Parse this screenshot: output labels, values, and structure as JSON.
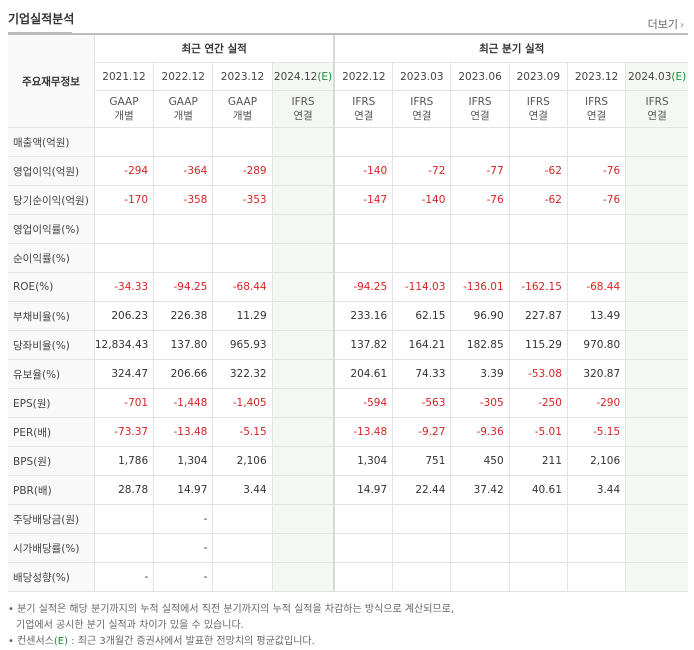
{
  "header": {
    "title": "기업실적분석",
    "more_label": "더보기"
  },
  "table": {
    "row_header": "주요재무정보",
    "annual_group": "최근 연간 실적",
    "quarter_group": "최근 분기 실적",
    "annual_periods": [
      "2021.12",
      "2022.12",
      "2023.12",
      "2024.12"
    ],
    "quarter_periods": [
      "2022.12",
      "2023.03",
      "2023.06",
      "2023.09",
      "2023.12",
      "2024.03"
    ],
    "estimate_mark": "(E)",
    "annual_basis": [
      {
        "std": "GAAP",
        "type": "개별"
      },
      {
        "std": "GAAP",
        "type": "개별"
      },
      {
        "std": "GAAP",
        "type": "개별"
      },
      {
        "std": "IFRS",
        "type": "연결"
      }
    ],
    "quarter_basis": [
      {
        "std": "IFRS",
        "type": "연결"
      },
      {
        "std": "IFRS",
        "type": "연결"
      },
      {
        "std": "IFRS",
        "type": "연결"
      },
      {
        "std": "IFRS",
        "type": "연결"
      },
      {
        "std": "IFRS",
        "type": "연결"
      },
      {
        "std": "IFRS",
        "type": "연결"
      }
    ],
    "rows": [
      {
        "label": "매출액(억원)",
        "annual": [
          "",
          "",
          "",
          ""
        ],
        "quarter": [
          "",
          "",
          "",
          "",
          "",
          ""
        ]
      },
      {
        "label": "영업이익(억원)",
        "annual": [
          "-294",
          "-364",
          "-289",
          ""
        ],
        "quarter": [
          "-140",
          "-72",
          "-77",
          "-62",
          "-76",
          ""
        ]
      },
      {
        "label": "당기순이익(억원)",
        "annual": [
          "-170",
          "-358",
          "-353",
          ""
        ],
        "quarter": [
          "-147",
          "-140",
          "-76",
          "-62",
          "-76",
          ""
        ]
      },
      {
        "label": "영업이익률(%)",
        "annual": [
          "",
          "",
          "",
          ""
        ],
        "quarter": [
          "",
          "",
          "",
          "",
          "",
          ""
        ]
      },
      {
        "label": "순이익률(%)",
        "annual": [
          "",
          "",
          "",
          ""
        ],
        "quarter": [
          "",
          "",
          "",
          "",
          "",
          ""
        ]
      },
      {
        "label": "ROE(%)",
        "annual": [
          "-34.33",
          "-94.25",
          "-68.44",
          ""
        ],
        "quarter": [
          "-94.25",
          "-114.03",
          "-136.01",
          "-162.15",
          "-68.44",
          ""
        ]
      },
      {
        "label": "부채비율(%)",
        "annual": [
          "206.23",
          "226.38",
          "11.29",
          ""
        ],
        "quarter": [
          "233.16",
          "62.15",
          "96.90",
          "227.87",
          "13.49",
          ""
        ]
      },
      {
        "label": "당좌비율(%)",
        "annual": [
          "12,834.43",
          "137.80",
          "965.93",
          ""
        ],
        "quarter": [
          "137.82",
          "164.21",
          "182.85",
          "115.29",
          "970.80",
          ""
        ]
      },
      {
        "label": "유보율(%)",
        "annual": [
          "324.47",
          "206.66",
          "322.32",
          ""
        ],
        "quarter": [
          "204.61",
          "74.33",
          "3.39",
          "-53.08",
          "320.87",
          ""
        ]
      },
      {
        "label": "EPS(원)",
        "annual": [
          "-701",
          "-1,448",
          "-1,405",
          ""
        ],
        "quarter": [
          "-594",
          "-563",
          "-305",
          "-250",
          "-290",
          ""
        ]
      },
      {
        "label": "PER(배)",
        "annual": [
          "-73.37",
          "-13.48",
          "-5.15",
          ""
        ],
        "quarter": [
          "-13.48",
          "-9.27",
          "-9.36",
          "-5.01",
          "-5.15",
          ""
        ]
      },
      {
        "label": "BPS(원)",
        "annual": [
          "1,786",
          "1,304",
          "2,106",
          ""
        ],
        "quarter": [
          "1,304",
          "751",
          "450",
          "211",
          "2,106",
          ""
        ]
      },
      {
        "label": "PBR(배)",
        "annual": [
          "28.78",
          "14.97",
          "3.44",
          ""
        ],
        "quarter": [
          "14.97",
          "22.44",
          "37.42",
          "40.61",
          "3.44",
          ""
        ]
      },
      {
        "label": "주당배당금(원)",
        "annual": [
          "",
          "-",
          "",
          ""
        ],
        "quarter": [
          "",
          "",
          "",
          "",
          "",
          ""
        ]
      },
      {
        "label": "시가배당률(%)",
        "annual": [
          "",
          "-",
          "",
          ""
        ],
        "quarter": [
          "",
          "",
          "",
          "",
          "",
          ""
        ]
      },
      {
        "label": "배당성향(%)",
        "annual": [
          "-",
          "-",
          "",
          ""
        ],
        "quarter": [
          "",
          "",
          "",
          "",
          "",
          ""
        ]
      }
    ]
  },
  "notes": {
    "line1": "분기 실적은 해당 분기까지의 누적 실적에서 직전 분기까지의 누적 실적을 차감하는 방식으로 계산되므로,",
    "line2": "기업에서 공시한 분기 실적과 차이가 있을 수 있습니다.",
    "line3_prefix": "컨센서스",
    "line3_mark": "(E)",
    "line3_suffix": " : 최근 3개월간 증권사에서 발표한 전망치의 평균값입니다."
  },
  "colors": {
    "negative": "#d62424",
    "ifrs": "#e65c1a",
    "estimate": "#1e8a3a",
    "forecast_bg": "#f4f8f3"
  }
}
